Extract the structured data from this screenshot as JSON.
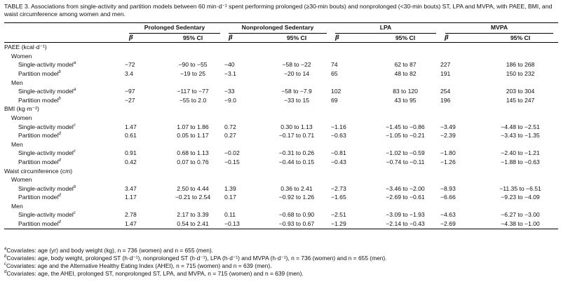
{
  "caption": {
    "label": "TABLE 3.",
    "text": "Associations from single-activity and partition models between 60 min·d⁻¹ spent performing prolonged (≥30-min bouts) and nonprolonged (<30-min bouts) ST, LPA and MVPA, with PAEE, BMI, and waist circumference among women and men."
  },
  "header": {
    "groups": [
      "Prolonged Sedentary",
      "Nonprolonged Sedentary",
      "LPA",
      "MVPA"
    ],
    "beta": "β",
    "ci": "95% CI"
  },
  "rows": [
    {
      "type": "section",
      "label": "PAEE (kcal·d⁻¹)"
    },
    {
      "type": "sex",
      "label": "Women"
    },
    {
      "type": "data",
      "label": "Single-activity model",
      "sup": "a",
      "v": [
        "−72",
        "−90 to −55",
        "−40",
        "−58 to −22",
        "74",
        "62 to 87",
        "227",
        "186 to 268"
      ]
    },
    {
      "type": "data",
      "label": "Partition model",
      "sup": "b",
      "v": [
        "3.4",
        "−19 to 25",
        "−3.1",
        "−20 to 14",
        "65",
        "48 to 82",
        "191",
        "150 to 232"
      ]
    },
    {
      "type": "sex",
      "label": "Men"
    },
    {
      "type": "data",
      "label": "Single-activity model",
      "sup": "a",
      "v": [
        "−97",
        "−117 to −77",
        "−33",
        "−58 to −7.9",
        "102",
        "83 to 120",
        "254",
        "203 to 304"
      ]
    },
    {
      "type": "data",
      "label": "Partition model",
      "sup": "b",
      "v": [
        "−27",
        "−55 to 2.0",
        "−9.0",
        "−33 to 15",
        "69",
        "43 to 95",
        "196",
        "145 to 247"
      ]
    },
    {
      "type": "section",
      "label": "BMI (kg·m⁻²)"
    },
    {
      "type": "sex",
      "label": "Women"
    },
    {
      "type": "data",
      "label": "Single-activity model",
      "sup": "c",
      "v": [
        "1.47",
        "1.07 to 1.86",
        "0.72",
        "0.30 to 1.13",
        "−1.16",
        "−1.45 to −0.86",
        "−3.49",
        "−4.48 to −2.51"
      ]
    },
    {
      "type": "data",
      "label": "Partition model",
      "sup": "d",
      "v": [
        "0.61",
        "0.05 to 1.17",
        "0.27",
        "−0.17 to 0.71",
        "−0.63",
        "−1.05 to −0.21",
        "−2.39",
        "−3.43 to −1.35"
      ]
    },
    {
      "type": "sex",
      "label": "Men"
    },
    {
      "type": "data",
      "label": "Single-activity model",
      "sup": "c",
      "v": [
        "0.91",
        "0.68 to 1.13",
        "−0.02",
        "−0.31 to 0.26",
        "−0.81",
        "−1.02 to −0.59",
        "−1.80",
        "−2.40 to −1.21"
      ]
    },
    {
      "type": "data",
      "label": "Partition model",
      "sup": "d",
      "v": [
        "0.42",
        "0.07 to 0.76",
        "−0.15",
        "−0.44 to 0.15",
        "−0.43",
        "−0.74 to −0.11",
        "−1.26",
        "−1.88 to −0.63"
      ]
    },
    {
      "type": "section",
      "label": "Waist circumference (cm)"
    },
    {
      "type": "sex",
      "label": "Women"
    },
    {
      "type": "data",
      "label": "Single-activity model",
      "sup": "b",
      "v": [
        "3.47",
        "2.50 to 4.44",
        "1.39",
        "0.36 to 2.41",
        "−2.73",
        "−3.46 to −2.00",
        "−8.93",
        "−11.35 to −6.51"
      ]
    },
    {
      "type": "data",
      "label": "Partition model",
      "sup": "d",
      "v": [
        "1.17",
        "−0.21 to 2.54",
        "0.17",
        "−0.92 to 1.26",
        "−1.65",
        "−2.69 to −0.61",
        "−6.66",
        "−9.23 to −4.09"
      ]
    },
    {
      "type": "sex",
      "label": "Men"
    },
    {
      "type": "data",
      "label": "Single-activity model",
      "sup": "c",
      "v": [
        "2.78",
        "2.17 to 3.39",
        "0.11",
        "−0.68 to 0.90",
        "−2.51",
        "−3.09 to −1.93",
        "−4.63",
        "−6.27 to −3.00"
      ]
    },
    {
      "type": "data",
      "label": "Partition model",
      "sup": "d",
      "v": [
        "1.47",
        "0.54 to 2.41",
        "−0.13",
        "−0.93 to 0.67",
        "−1.29",
        "−2.14 to −0.43",
        "−2.69",
        "−4.38 to −1.00"
      ]
    }
  ],
  "footnotes": [
    {
      "sup": "a",
      "text": "Covariates: age (yr) and body weight (kg), n = 736 (women) and n = 655 (men)."
    },
    {
      "sup": "b",
      "text": "Covariates: age, body weight, prolonged ST (h·d⁻¹), nonprolonged ST (h·d⁻¹), LPA (h·d⁻¹) and MVPA (h·d⁻¹), n = 736 (women) and n = 655 (men)."
    },
    {
      "sup": "c",
      "text": "Covariates: age and the Alternative Healthy Eating Index (AHEI), n = 715 (women) and n = 639 (men)."
    },
    {
      "sup": "d",
      "text": "Covariates: age, the AHEI, prolonged ST, nonprolonged ST, LPA, and MVPA, n = 715 (women) and n = 639 (men)."
    }
  ]
}
